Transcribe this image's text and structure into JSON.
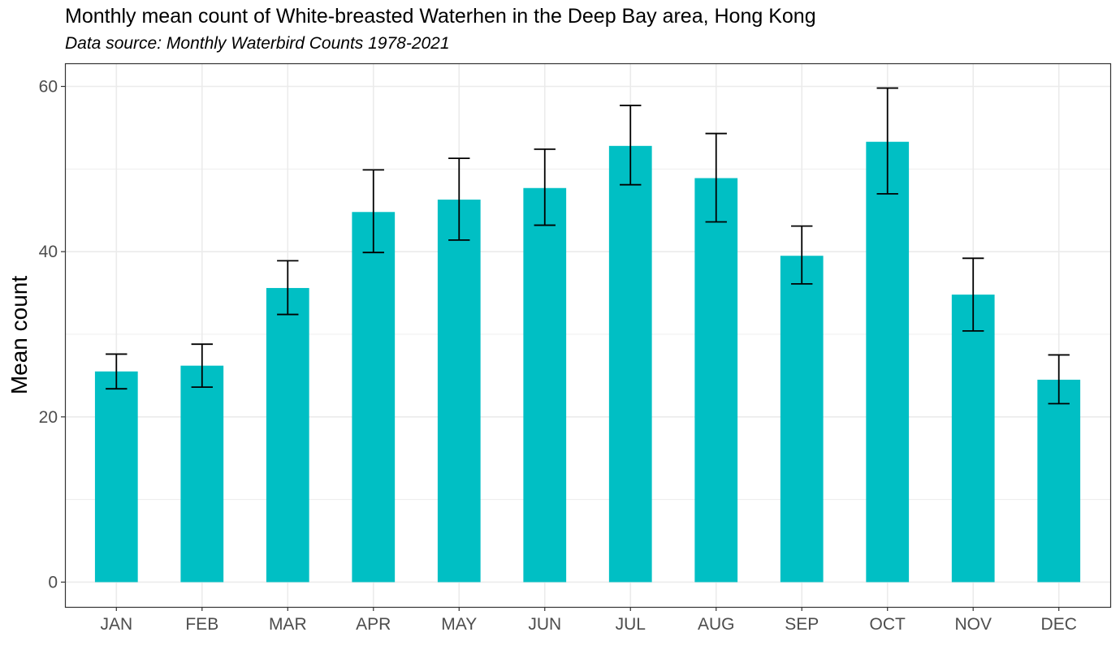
{
  "chart_data": {
    "type": "bar",
    "title": "Monthly mean count of White-breasted Waterhen in the Deep Bay area, Hong Kong",
    "subtitle": "Data source: Monthly Waterbird Counts 1978-2021",
    "xlabel": "",
    "ylabel": "Mean count",
    "categories": [
      "JAN",
      "FEB",
      "MAR",
      "APR",
      "MAY",
      "JUN",
      "JUL",
      "AUG",
      "SEP",
      "OCT",
      "NOV",
      "DEC"
    ],
    "values": [
      25.5,
      26.2,
      35.6,
      44.8,
      46.3,
      47.7,
      52.8,
      48.9,
      39.5,
      53.3,
      34.8,
      24.5
    ],
    "error_low": [
      23.4,
      23.6,
      32.4,
      39.9,
      41.4,
      43.2,
      48.1,
      43.6,
      36.1,
      47.0,
      30.4,
      21.6
    ],
    "error_high": [
      27.6,
      28.8,
      38.9,
      49.9,
      51.3,
      52.4,
      57.7,
      54.3,
      43.1,
      59.8,
      39.2,
      27.5
    ],
    "ylim": [
      -3,
      62.8
    ],
    "yticks": [
      0,
      20,
      40,
      60
    ],
    "grid": true,
    "bar_color": "#00BFC4",
    "error_bar_color": "#000000",
    "gridline_color": "#ebebeb",
    "panel_border_color": "#333333"
  }
}
